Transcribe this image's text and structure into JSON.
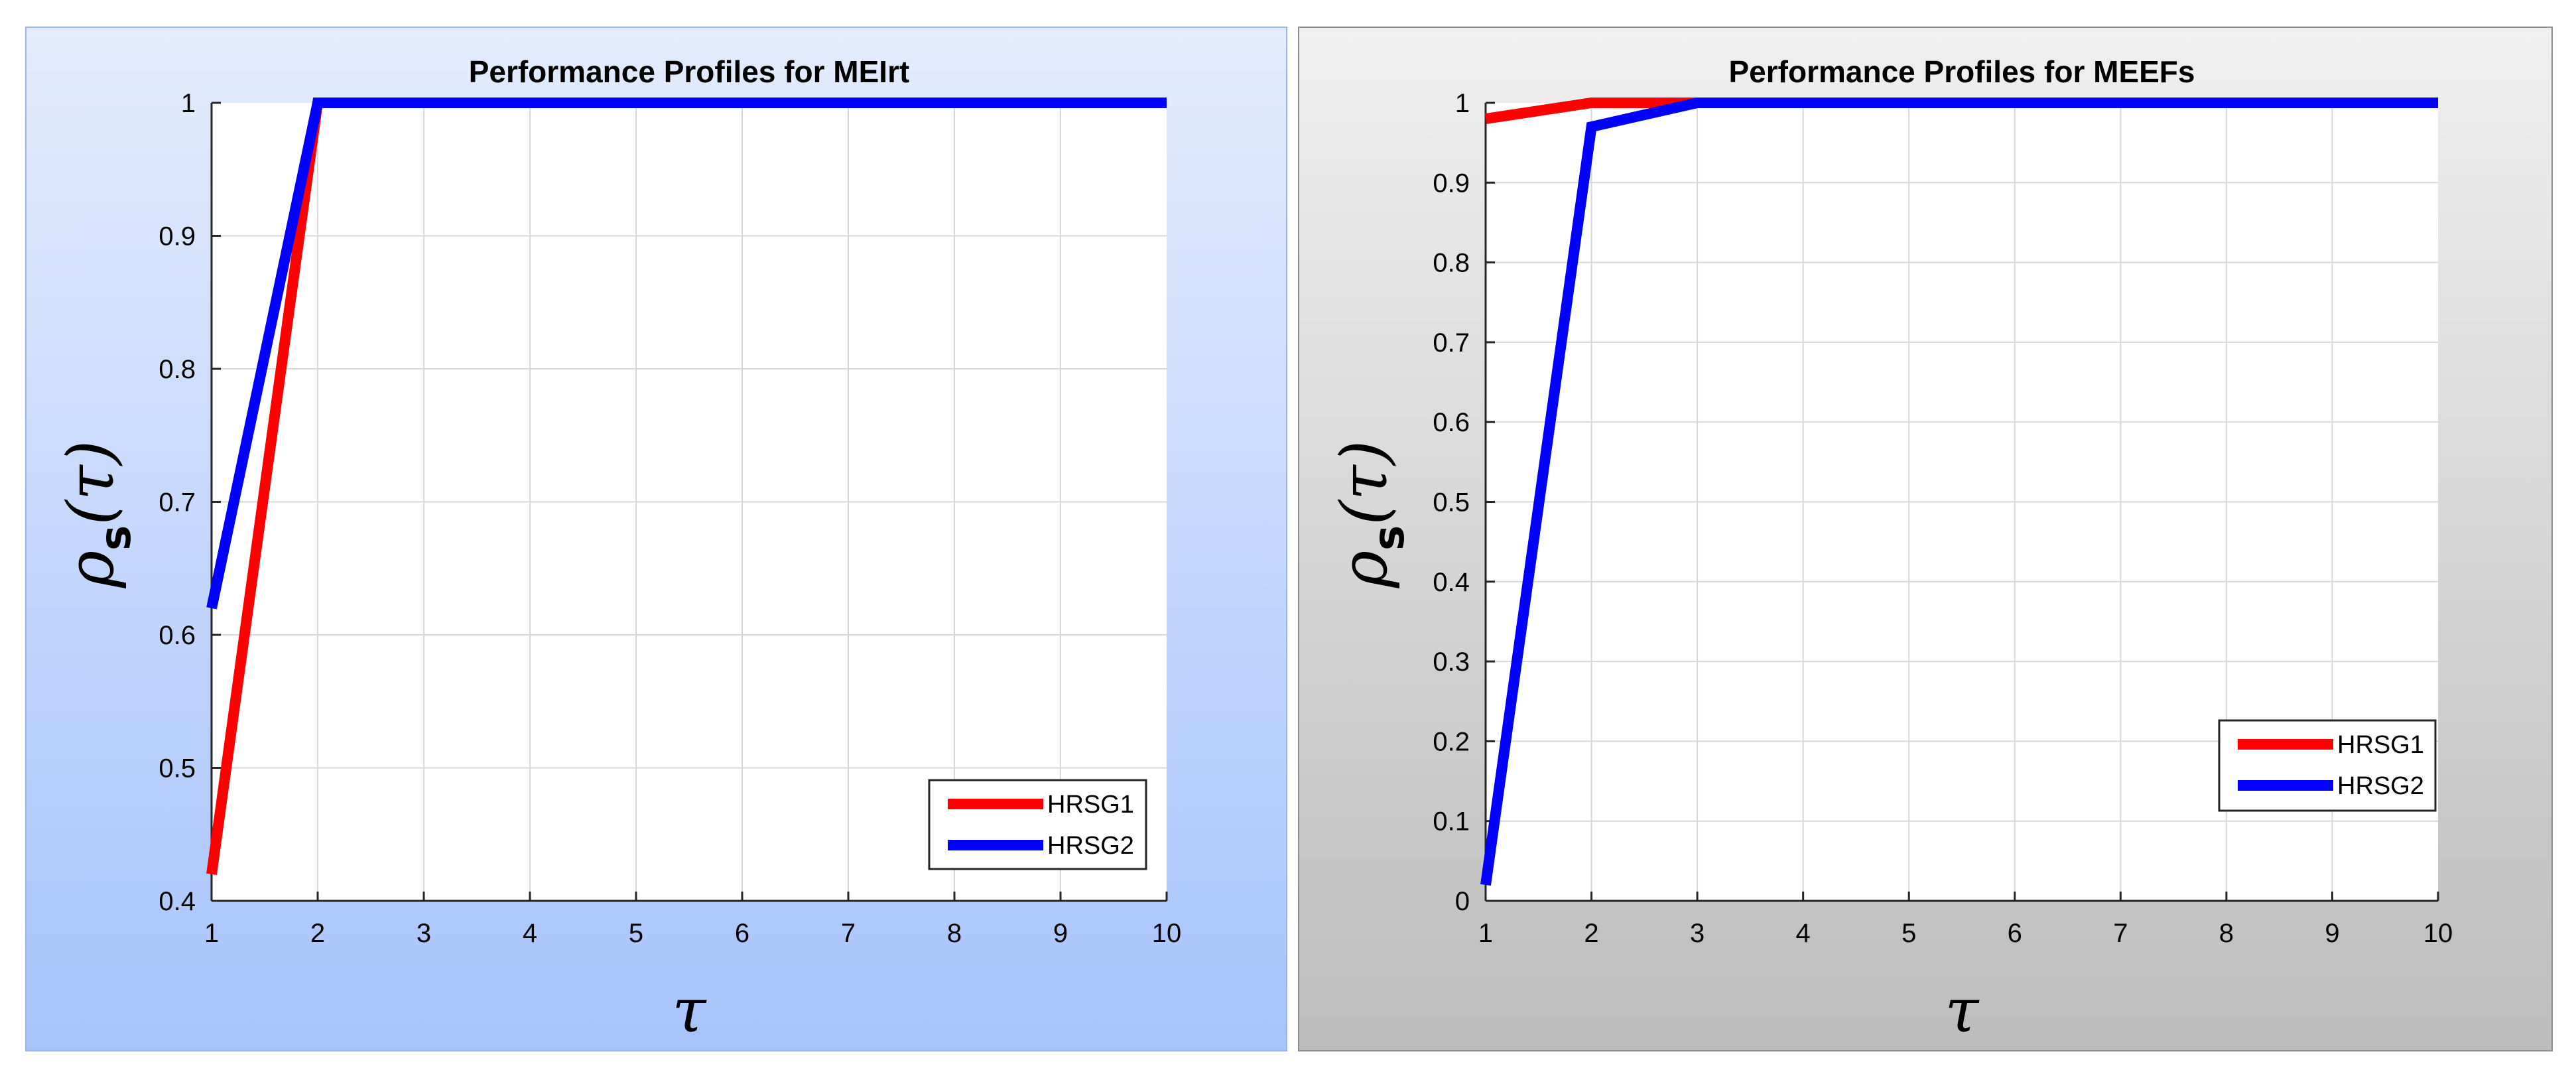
{
  "chart_data": [
    {
      "type": "line",
      "title": "Performance Profiles for MEIrt",
      "xlabel": "τ",
      "ylabel": {
        "main": "ρ",
        "sub": "s",
        "rest": "(τ)"
      },
      "xlim": [
        1,
        10
      ],
      "ylim": [
        0.4,
        1
      ],
      "xticks": [
        1,
        2,
        3,
        4,
        5,
        6,
        7,
        8,
        9,
        10
      ],
      "yticks": [
        0.4,
        0.5,
        0.6,
        0.7,
        0.8,
        0.9,
        1
      ],
      "ytick_labels": [
        "0.4",
        "0.5",
        "0.6",
        "0.7",
        "0.8",
        "0.9",
        "1"
      ],
      "grid": true,
      "legend_position": "bottom-right",
      "background": "#c5d8fc",
      "series": [
        {
          "name": "HRSG1",
          "color": "#ff0000",
          "x": [
            1,
            2,
            10
          ],
          "y": [
            0.42,
            1,
            1
          ]
        },
        {
          "name": "HRSG2",
          "color": "#0000ff",
          "x": [
            1,
            2,
            10
          ],
          "y": [
            0.62,
            1,
            1
          ]
        }
      ]
    },
    {
      "type": "line",
      "title": "Performance Profiles for MEEFs",
      "xlabel": "τ",
      "ylabel": {
        "main": "ρ",
        "sub": "s",
        "rest": "(τ)"
      },
      "xlim": [
        1,
        10
      ],
      "ylim": [
        0,
        1
      ],
      "xticks": [
        1,
        2,
        3,
        4,
        5,
        6,
        7,
        8,
        9,
        10
      ],
      "yticks": [
        0,
        0.1,
        0.2,
        0.3,
        0.4,
        0.5,
        0.6,
        0.7,
        0.8,
        0.9,
        1
      ],
      "ytick_labels": [
        "0",
        "0.1",
        "0.2",
        "0.3",
        "0.4",
        "0.5",
        "0.6",
        "0.7",
        "0.8",
        "0.9",
        "1"
      ],
      "grid": true,
      "legend_position": "bottom-right",
      "background": "#d6d6d6",
      "series": [
        {
          "name": "HRSG1",
          "color": "#ff0000",
          "x": [
            1,
            2,
            3,
            10
          ],
          "y": [
            0.98,
            1,
            1,
            1
          ]
        },
        {
          "name": "HRSG2",
          "color": "#0000ff",
          "x": [
            1,
            2,
            3,
            10
          ],
          "y": [
            0.02,
            0.97,
            1,
            1
          ]
        }
      ]
    }
  ]
}
